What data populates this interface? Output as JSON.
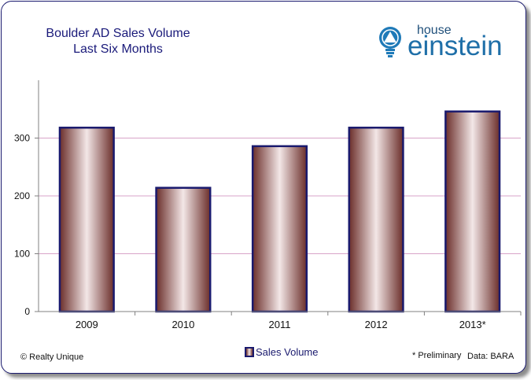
{
  "title": {
    "line1": "Boulder AD Sales Volume",
    "line2": "Last Six Months"
  },
  "logo": {
    "small": "house",
    "big": "einstein"
  },
  "footer": {
    "copyright": "© Realty Unique",
    "note": "* Preliminary",
    "source": "Data: BARA"
  },
  "legend": {
    "label": "Sales Volume"
  },
  "colors": {
    "bar_dark": "#6b2e2a",
    "bar_light": "#f3e7e7",
    "bar_border": "#1a1a6e",
    "grid": "#d8a3c8",
    "text": "#1a1a7a"
  },
  "chart_data": {
    "type": "bar",
    "title": "Boulder AD Sales Volume Last Six Months",
    "categories": [
      "2009",
      "2010",
      "2011",
      "2012",
      "2013*"
    ],
    "series": [
      {
        "name": "Sales Volume",
        "values": [
          318,
          214,
          286,
          318,
          346
        ]
      }
    ],
    "yticks": [
      0,
      100,
      200,
      300
    ],
    "ylim": [
      0,
      400
    ],
    "xlabel": "",
    "ylabel": "",
    "grid": true,
    "legend": "bottom-center"
  }
}
